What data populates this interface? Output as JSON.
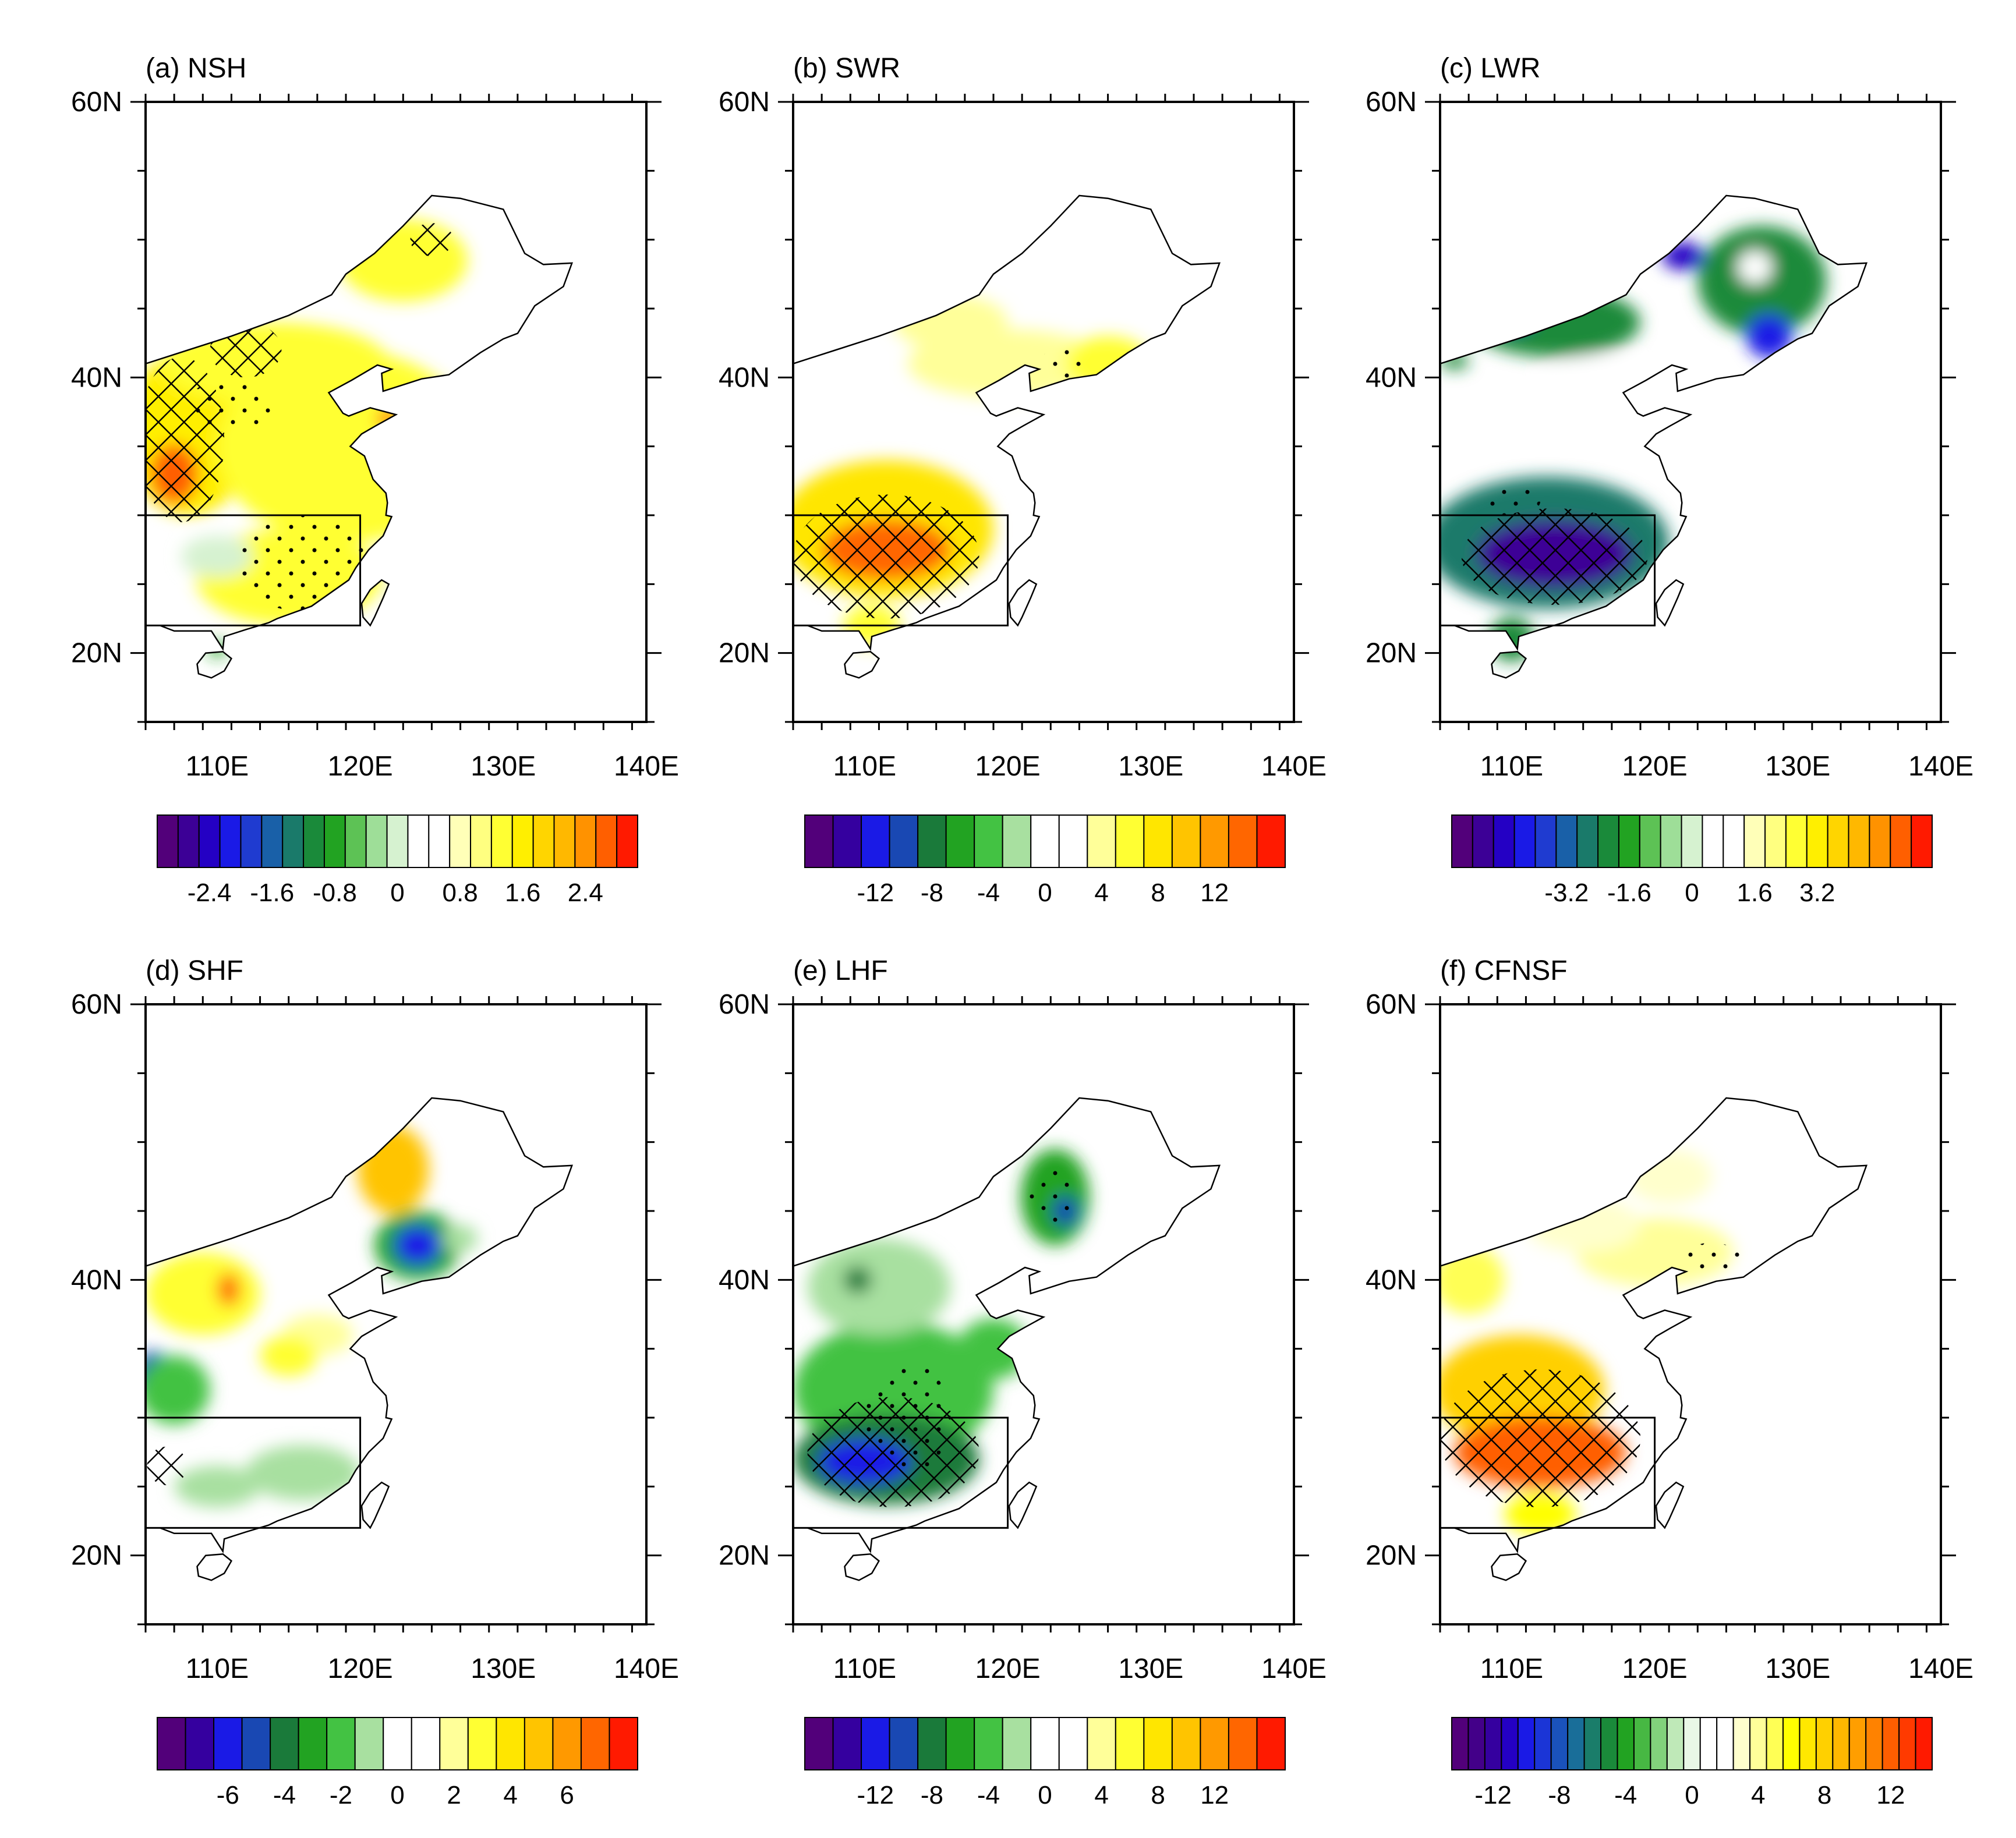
{
  "figure": {
    "panels": [
      {
        "title": "(a) NSH",
        "colorbar": {
          "palette": "p22",
          "labels": [
            "-2.4",
            "-1.6",
            "-0.8",
            "0",
            "0.8",
            "1.6",
            "2.4"
          ]
        }
      },
      {
        "title": "(b) SWR",
        "colorbar": {
          "palette": "p16",
          "labels": [
            "-12",
            "-8",
            "-4",
            "0",
            "4",
            "8",
            "12"
          ]
        }
      },
      {
        "title": "(c) LWR",
        "colorbar": {
          "palette": "p22",
          "labels": [
            "-3.2",
            "-1.6",
            "0",
            "1.6",
            "3.2"
          ]
        }
      },
      {
        "title": "(d) SHF",
        "colorbar": {
          "palette": "p16",
          "labels": [
            "-6",
            "-4",
            "-2",
            "0",
            "2",
            "4",
            "6"
          ]
        }
      },
      {
        "title": "(e) LHF",
        "colorbar": {
          "palette": "p16",
          "labels": [
            "-12",
            "-8",
            "-4",
            "0",
            "4",
            "8",
            "12"
          ]
        }
      },
      {
        "title": "(f) CFNSF",
        "colorbar": {
          "palette": "p28",
          "labels": [
            "-12",
            "-8",
            "-4",
            "0",
            "4",
            "8",
            "12"
          ]
        }
      }
    ],
    "axes": {
      "lat_ticks": [
        "60N",
        "40N",
        "20N"
      ],
      "lon_ticks": [
        "110E",
        "120E",
        "130E",
        "140E"
      ],
      "lat_range": [
        15,
        60
      ],
      "lon_range": [
        105,
        140
      ]
    },
    "box_region": {
      "lon": [
        105,
        120
      ],
      "lat": [
        22,
        30
      ]
    },
    "palettes": {
      "p16": [
        "#52007a",
        "#35009f",
        "#1a1ae6",
        "#1948b3",
        "#1a7a3a",
        "#22a322",
        "#43c243",
        "#a8e0a0",
        "#ffffff",
        "#ffffff",
        "#ffff99",
        "#ffff33",
        "#ffe600",
        "#ffc400",
        "#ff9900",
        "#ff6600",
        "#ff1a00"
      ],
      "p22": [
        "#52007a",
        "#3c0096",
        "#2400c4",
        "#1a1ae6",
        "#1f3bd0",
        "#1960a8",
        "#1a7a6a",
        "#1a8a3a",
        "#22a322",
        "#5dc255",
        "#9ede98",
        "#d6f2d0",
        "#ffffff",
        "#ffffff",
        "#ffffb8",
        "#ffff80",
        "#ffff33",
        "#ffef00",
        "#ffd500",
        "#ffb800",
        "#ff9200",
        "#ff5f00",
        "#ff1a00"
      ],
      "p28": [
        "#52007a",
        "#430089",
        "#35009f",
        "#2400c4",
        "#1a1ae6",
        "#1b35d6",
        "#1a52bb",
        "#196e99",
        "#1a7d6a",
        "#1a8a3a",
        "#22a322",
        "#47b843",
        "#82d27c",
        "#bfe9b8",
        "#e9f7e6",
        "#ffffff",
        "#ffffff",
        "#ffffcc",
        "#ffff99",
        "#ffff55",
        "#ffff00",
        "#ffe800",
        "#ffd000",
        "#ffb800",
        "#ff9e00",
        "#ff8200",
        "#ff5e00",
        "#ff3a00",
        "#ff1a00"
      ]
    }
  }
}
